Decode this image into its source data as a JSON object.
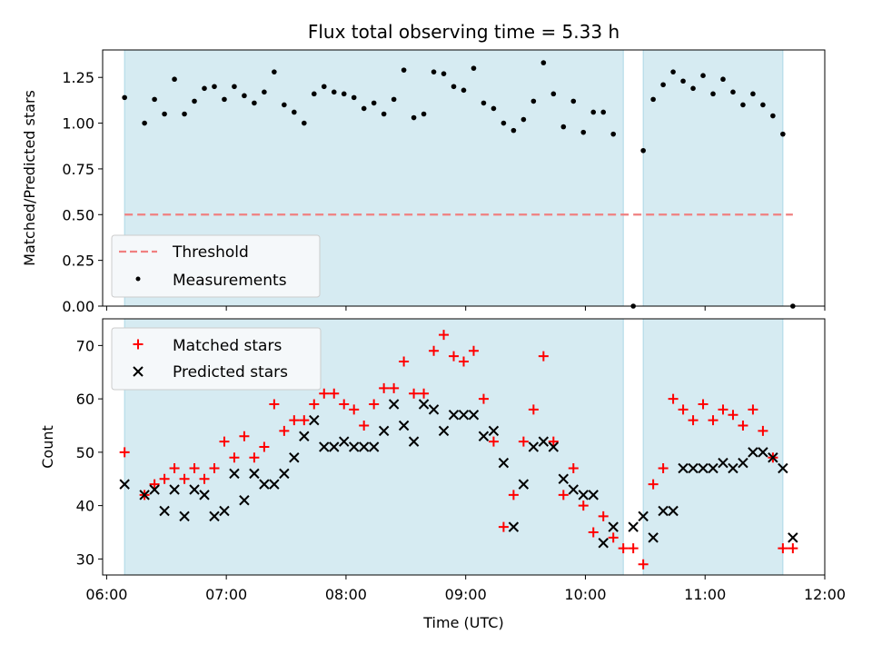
{
  "chart_data": [
    {
      "type": "scatter",
      "title": "Flux total observing time = 5.33 h",
      "ylabel": "Matched/Predicted stars",
      "xlim": [
        "05:58",
        "12:00"
      ],
      "ylim": [
        0,
        1.4
      ],
      "yticks": [
        "0.00",
        "0.25",
        "0.50",
        "0.75",
        "1.00",
        "1.25"
      ],
      "shaded_intervals": [
        [
          "06:09",
          "10:19"
        ],
        [
          "10:29",
          "11:39"
        ]
      ],
      "threshold": {
        "name": "Threshold",
        "y": 0.5,
        "x_range": [
          "06:09",
          "11:44"
        ],
        "color": "#f08080",
        "style": "dashed"
      },
      "series": [
        {
          "name": "Measurements",
          "marker": "dot",
          "color": "#000000",
          "x": [
            "06:09",
            "06:19",
            "06:24",
            "06:29",
            "06:34",
            "06:39",
            "06:44",
            "06:49",
            "06:54",
            "06:59",
            "07:04",
            "07:09",
            "07:14",
            "07:19",
            "07:24",
            "07:29",
            "07:34",
            "07:39",
            "07:44",
            "07:49",
            "07:54",
            "07:59",
            "08:04",
            "08:09",
            "08:14",
            "08:19",
            "08:24",
            "08:29",
            "08:34",
            "08:39",
            "08:44",
            "08:49",
            "08:54",
            "08:59",
            "09:04",
            "09:09",
            "09:14",
            "09:19",
            "09:24",
            "09:29",
            "09:34",
            "09:39",
            "09:44",
            "09:49",
            "09:54",
            "09:59",
            "10:04",
            "10:09",
            "10:14",
            "10:24",
            "10:29",
            "10:34",
            "10:39",
            "10:44",
            "10:49",
            "10:54",
            "10:59",
            "11:04",
            "11:09",
            "11:14",
            "11:19",
            "11:24",
            "11:29",
            "11:34",
            "11:39",
            "11:44"
          ],
          "y": [
            1.14,
            1.0,
            1.13,
            1.05,
            1.24,
            1.05,
            1.12,
            1.19,
            1.2,
            1.13,
            1.2,
            1.15,
            1.11,
            1.17,
            1.28,
            1.1,
            1.06,
            1.0,
            1.16,
            1.2,
            1.17,
            1.16,
            1.14,
            1.08,
            1.11,
            1.05,
            1.13,
            1.29,
            1.03,
            1.05,
            1.28,
            1.27,
            1.2,
            1.18,
            1.3,
            1.11,
            1.08,
            1.0,
            0.96,
            1.02,
            1.12,
            1.33,
            1.16,
            0.98,
            1.12,
            0.95,
            1.06,
            1.06,
            0.94,
            0.0,
            0.85,
            1.13,
            1.21,
            1.28,
            1.23,
            1.19,
            1.26,
            1.16,
            1.24,
            1.17,
            1.1,
            1.16,
            1.1,
            1.04,
            0.94,
            0.0
          ]
        }
      ],
      "legend_position": "lower-left"
    },
    {
      "type": "scatter",
      "xlabel": "Time (UTC)",
      "ylabel": "Count",
      "xlim": [
        "05:58",
        "12:00"
      ],
      "ylim": [
        27,
        75
      ],
      "xticks": [
        "06:00",
        "07:00",
        "08:00",
        "09:00",
        "10:00",
        "11:00",
        "12:00"
      ],
      "yticks": [
        "30",
        "40",
        "50",
        "60",
        "70"
      ],
      "shaded_intervals": [
        [
          "06:09",
          "10:19"
        ],
        [
          "10:29",
          "11:39"
        ]
      ],
      "series": [
        {
          "name": "Matched stars",
          "marker": "plus",
          "color": "#ff0000",
          "x": [
            "06:09",
            "06:19",
            "06:24",
            "06:29",
            "06:34",
            "06:39",
            "06:44",
            "06:49",
            "06:54",
            "06:59",
            "07:04",
            "07:09",
            "07:14",
            "07:19",
            "07:24",
            "07:29",
            "07:34",
            "07:39",
            "07:44",
            "07:49",
            "07:54",
            "07:59",
            "08:04",
            "08:09",
            "08:14",
            "08:19",
            "08:24",
            "08:29",
            "08:34",
            "08:39",
            "08:44",
            "08:49",
            "08:54",
            "08:59",
            "09:04",
            "09:09",
            "09:14",
            "09:19",
            "09:24",
            "09:29",
            "09:34",
            "09:39",
            "09:44",
            "09:49",
            "09:54",
            "09:59",
            "10:04",
            "10:09",
            "10:14",
            "10:19",
            "10:24",
            "10:29",
            "10:34",
            "10:39",
            "10:44",
            "10:49",
            "10:54",
            "10:59",
            "11:04",
            "11:09",
            "11:14",
            "11:19",
            "11:24",
            "11:29",
            "11:34",
            "11:39",
            "11:44"
          ],
          "y": [
            50,
            42,
            44,
            45,
            47,
            45,
            47,
            45,
            47,
            52,
            49,
            53,
            49,
            51,
            59,
            54,
            56,
            56,
            59,
            61,
            61,
            59,
            58,
            55,
            59,
            62,
            62,
            67,
            61,
            61,
            69,
            72,
            68,
            67,
            69,
            60,
            52,
            36,
            42,
            52,
            58,
            68,
            52,
            42,
            47,
            40,
            35,
            38,
            34,
            32,
            32,
            29,
            44,
            47,
            60,
            58,
            56,
            59,
            56,
            58,
            57,
            55,
            58,
            54,
            49,
            32,
            32
          ]
        },
        {
          "name": "Predicted stars",
          "marker": "x",
          "color": "#000000",
          "x": [
            "06:09",
            "06:19",
            "06:24",
            "06:29",
            "06:34",
            "06:39",
            "06:44",
            "06:49",
            "06:54",
            "06:59",
            "07:04",
            "07:09",
            "07:14",
            "07:19",
            "07:24",
            "07:29",
            "07:34",
            "07:39",
            "07:44",
            "07:49",
            "07:54",
            "07:59",
            "08:04",
            "08:09",
            "08:14",
            "08:19",
            "08:24",
            "08:29",
            "08:34",
            "08:39",
            "08:44",
            "08:49",
            "08:54",
            "08:59",
            "09:04",
            "09:09",
            "09:14",
            "09:19",
            "09:24",
            "09:29",
            "09:34",
            "09:39",
            "09:44",
            "09:49",
            "09:54",
            "09:59",
            "10:04",
            "10:09",
            "10:14",
            "10:24",
            "10:29",
            "10:34",
            "10:39",
            "10:44",
            "10:49",
            "10:54",
            "10:59",
            "11:04",
            "11:09",
            "11:14",
            "11:19",
            "11:24",
            "11:29",
            "11:34",
            "11:39",
            "11:44"
          ],
          "y": [
            44,
            42,
            43,
            39,
            43,
            38,
            43,
            42,
            38,
            39,
            46,
            41,
            46,
            44,
            44,
            46,
            49,
            53,
            56,
            51,
            51,
            52,
            51,
            51,
            51,
            54,
            59,
            55,
            52,
            59,
            58,
            54,
            57,
            57,
            57,
            53,
            54,
            48,
            36,
            44,
            51,
            52,
            51,
            45,
            43,
            42,
            42,
            33,
            36,
            36,
            38,
            34,
            39,
            39,
            47,
            47,
            47,
            47,
            48,
            47,
            48,
            50,
            50,
            49,
            47,
            34
          ]
        }
      ],
      "legend_position": "top-left"
    }
  ]
}
